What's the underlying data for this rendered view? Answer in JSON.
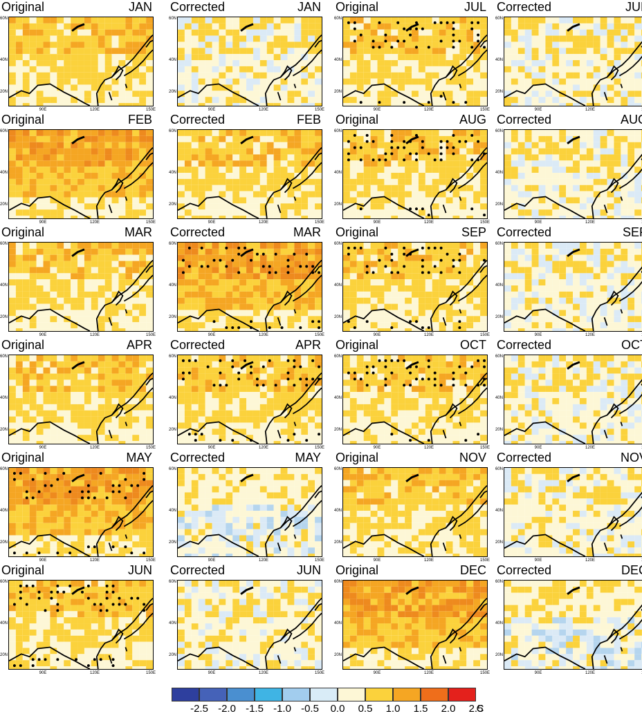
{
  "panels": [
    {
      "title": "Original",
      "month": "JAN",
      "pattern": "warm"
    },
    {
      "title": "Corrected",
      "month": "JAN",
      "pattern": "mild"
    },
    {
      "title": "Original",
      "month": "JUL",
      "pattern": "warm-dots"
    },
    {
      "title": "Corrected",
      "month": "JUL",
      "pattern": "mild"
    },
    {
      "title": "Original",
      "month": "FEB",
      "pattern": "hot"
    },
    {
      "title": "Corrected",
      "month": "FEB",
      "pattern": "warm"
    },
    {
      "title": "Original",
      "month": "AUG",
      "pattern": "warm-dots"
    },
    {
      "title": "Corrected",
      "month": "AUG",
      "pattern": "mild"
    },
    {
      "title": "Original",
      "month": "MAR",
      "pattern": "warm"
    },
    {
      "title": "Corrected",
      "month": "MAR",
      "pattern": "hot-dots"
    },
    {
      "title": "Original",
      "month": "SEP",
      "pattern": "warm-dots"
    },
    {
      "title": "Corrected",
      "month": "SEP",
      "pattern": "mild"
    },
    {
      "title": "Original",
      "month": "APR",
      "pattern": "warm"
    },
    {
      "title": "Corrected",
      "month": "APR",
      "pattern": "warm-dots"
    },
    {
      "title": "Original",
      "month": "OCT",
      "pattern": "warm-dots"
    },
    {
      "title": "Corrected",
      "month": "OCT",
      "pattern": "mild"
    },
    {
      "title": "Original",
      "month": "MAY",
      "pattern": "hot-dots"
    },
    {
      "title": "Corrected",
      "month": "MAY",
      "pattern": "cool"
    },
    {
      "title": "Original",
      "month": "NOV",
      "pattern": "warm"
    },
    {
      "title": "Corrected",
      "month": "NOV",
      "pattern": "mild"
    },
    {
      "title": "Original",
      "month": "JUN",
      "pattern": "warm-dots"
    },
    {
      "title": "Corrected",
      "month": "JUN",
      "pattern": "mild"
    },
    {
      "title": "Original",
      "month": "DEC",
      "pattern": "hot"
    },
    {
      "title": "Corrected",
      "month": "DEC",
      "pattern": "cool"
    }
  ],
  "axes": {
    "y_ticks": [
      "60N",
      "40N",
      "20N"
    ],
    "x_ticks": [
      "90E",
      "120E",
      "150E"
    ]
  },
  "colorbar": {
    "colors": [
      "#2e3f9e",
      "#4562b8",
      "#4a8fd0",
      "#3fb4e4",
      "#a2cdee",
      "#d9ecf7",
      "#fdf7d6",
      "#fbd23c",
      "#f5a623",
      "#ef6e1b",
      "#e4211c",
      "#b31b1b"
    ],
    "labels": [
      "-2.5",
      "-2.0",
      "-1.5",
      "-1.0",
      "-0.5",
      "0.0",
      "0.5",
      "1.0",
      "1.5",
      "2.0",
      "2.5",
      "C"
    ]
  }
}
